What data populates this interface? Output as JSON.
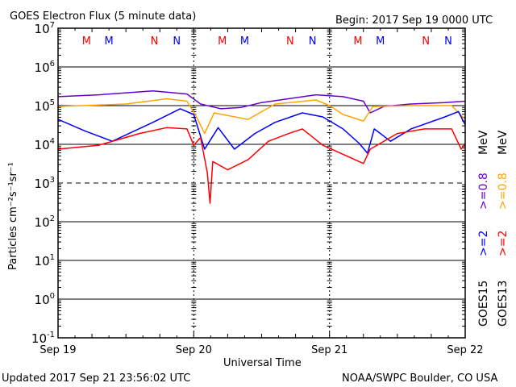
{
  "chart_data": {
    "type": "line",
    "title": "GOES Electron Flux (5 minute data)",
    "begin_label": "Begin: 2017 Sep 19 0000 UTC",
    "xlabel": "Universal Time",
    "ylabel": "Particles cm⁻²s⁻¹sr⁻¹",
    "y_scale": "log",
    "ylim": [
      0.1,
      10000000
    ],
    "y_ticks": [
      {
        "base": "10",
        "exp": "7"
      },
      {
        "base": "10",
        "exp": "6"
      },
      {
        "base": "10",
        "exp": "5"
      },
      {
        "base": "10",
        "exp": "4"
      },
      {
        "base": "10",
        "exp": "3"
      },
      {
        "base": "10",
        "exp": "2"
      },
      {
        "base": "10",
        "exp": "1"
      },
      {
        "base": "10",
        "exp": "0"
      },
      {
        "base": "10",
        "exp": "-1"
      }
    ],
    "x_unit": "days since 2017 Sep 19 0000 UTC",
    "xlim": [
      0,
      3
    ],
    "x_ticks": [
      "Sep 19",
      "Sep 20",
      "Sep 21",
      "Sep 22"
    ],
    "grid": true,
    "dashed_reference_level": 1000,
    "markers": [
      {
        "label": "M",
        "color": "#ff0000",
        "day_offset": 0.21
      },
      {
        "label": "M",
        "color": "#0000ff",
        "day_offset": 0.375
      },
      {
        "label": "N",
        "color": "#ff0000",
        "day_offset": 0.71
      },
      {
        "label": "N",
        "color": "#0000ff",
        "day_offset": 0.875
      }
    ],
    "series": [
      {
        "name": "GOES15 >=0.8 MeV",
        "color": "#6600cc",
        "x": [
          0,
          0.3,
          0.7,
          0.95,
          1.05,
          1.2,
          1.35,
          1.5,
          1.9,
          2.1,
          2.25,
          2.3,
          2.4,
          2.6,
          2.85,
          3.0
        ],
        "y": [
          170000,
          190000,
          240000,
          200000,
          110000,
          83000,
          90000,
          120000,
          190000,
          170000,
          130000,
          65000,
          95000,
          110000,
          120000,
          130000
        ]
      },
      {
        "name": "GOES13 >=0.8 MeV",
        "color": "#ffa500",
        "x": [
          0,
          0.5,
          0.8,
          0.95,
          1.02,
          1.08,
          1.15,
          1.4,
          1.6,
          1.9,
          2.0,
          2.1,
          2.25,
          2.32,
          2.6,
          2.9,
          3.0
        ],
        "y": [
          95000,
          110000,
          150000,
          130000,
          51000,
          19000,
          65000,
          44000,
          110000,
          140000,
          100000,
          59000,
          40000,
          95000,
          100000,
          100000,
          44000
        ]
      },
      {
        "name": "GOES15 >=2 MeV",
        "color": "#0000ff",
        "x": [
          0,
          0.2,
          0.4,
          0.7,
          0.9,
          1.0,
          1.08,
          1.18,
          1.3,
          1.45,
          1.6,
          1.8,
          1.95,
          2.1,
          2.22,
          2.28,
          2.33,
          2.45,
          2.6,
          2.85,
          2.95,
          3.0
        ],
        "y": [
          44000,
          22000,
          12000,
          37000,
          83000,
          59000,
          7500,
          27000,
          7500,
          19000,
          37000,
          65000,
          51000,
          25000,
          10500,
          5900,
          25000,
          12000,
          25000,
          51000,
          70000,
          32000
        ]
      },
      {
        "name": "GOES13 >=2 MeV",
        "color": "#ff0000",
        "x": [
          0,
          0.3,
          0.6,
          0.8,
          0.95,
          1.0,
          1.05,
          1.1,
          1.12,
          1.14,
          1.25,
          1.4,
          1.55,
          1.7,
          1.8,
          1.95,
          2.15,
          2.25,
          2.3,
          2.5,
          2.7,
          2.9,
          2.97,
          3.0
        ],
        "y": [
          7500,
          9500,
          19000,
          27000,
          25000,
          9500,
          15000,
          1800,
          300,
          3600,
          2200,
          4000,
          12000,
          19000,
          25000,
          9500,
          4600,
          3200,
          7500,
          19000,
          25000,
          25000,
          7500,
          10500
        ]
      }
    ],
    "legend": {
      "placement": "right",
      "columns": [
        {
          "satellite": "GOES15",
          "low": ">=0.8",
          "high": ">=2",
          "unit": "MeV",
          "low_color": "#6600cc",
          "high_color": "#0000ff"
        },
        {
          "satellite": "GOES13",
          "low": ">=0.8",
          "high": ">=2",
          "unit": "MeV",
          "low_color": "#ffa500",
          "high_color": "#ff0000"
        }
      ]
    }
  },
  "footer": {
    "updated": "Updated 2017 Sep 21 23:56:02 UTC",
    "source": "NOAA/SWPC Boulder, CO USA"
  }
}
